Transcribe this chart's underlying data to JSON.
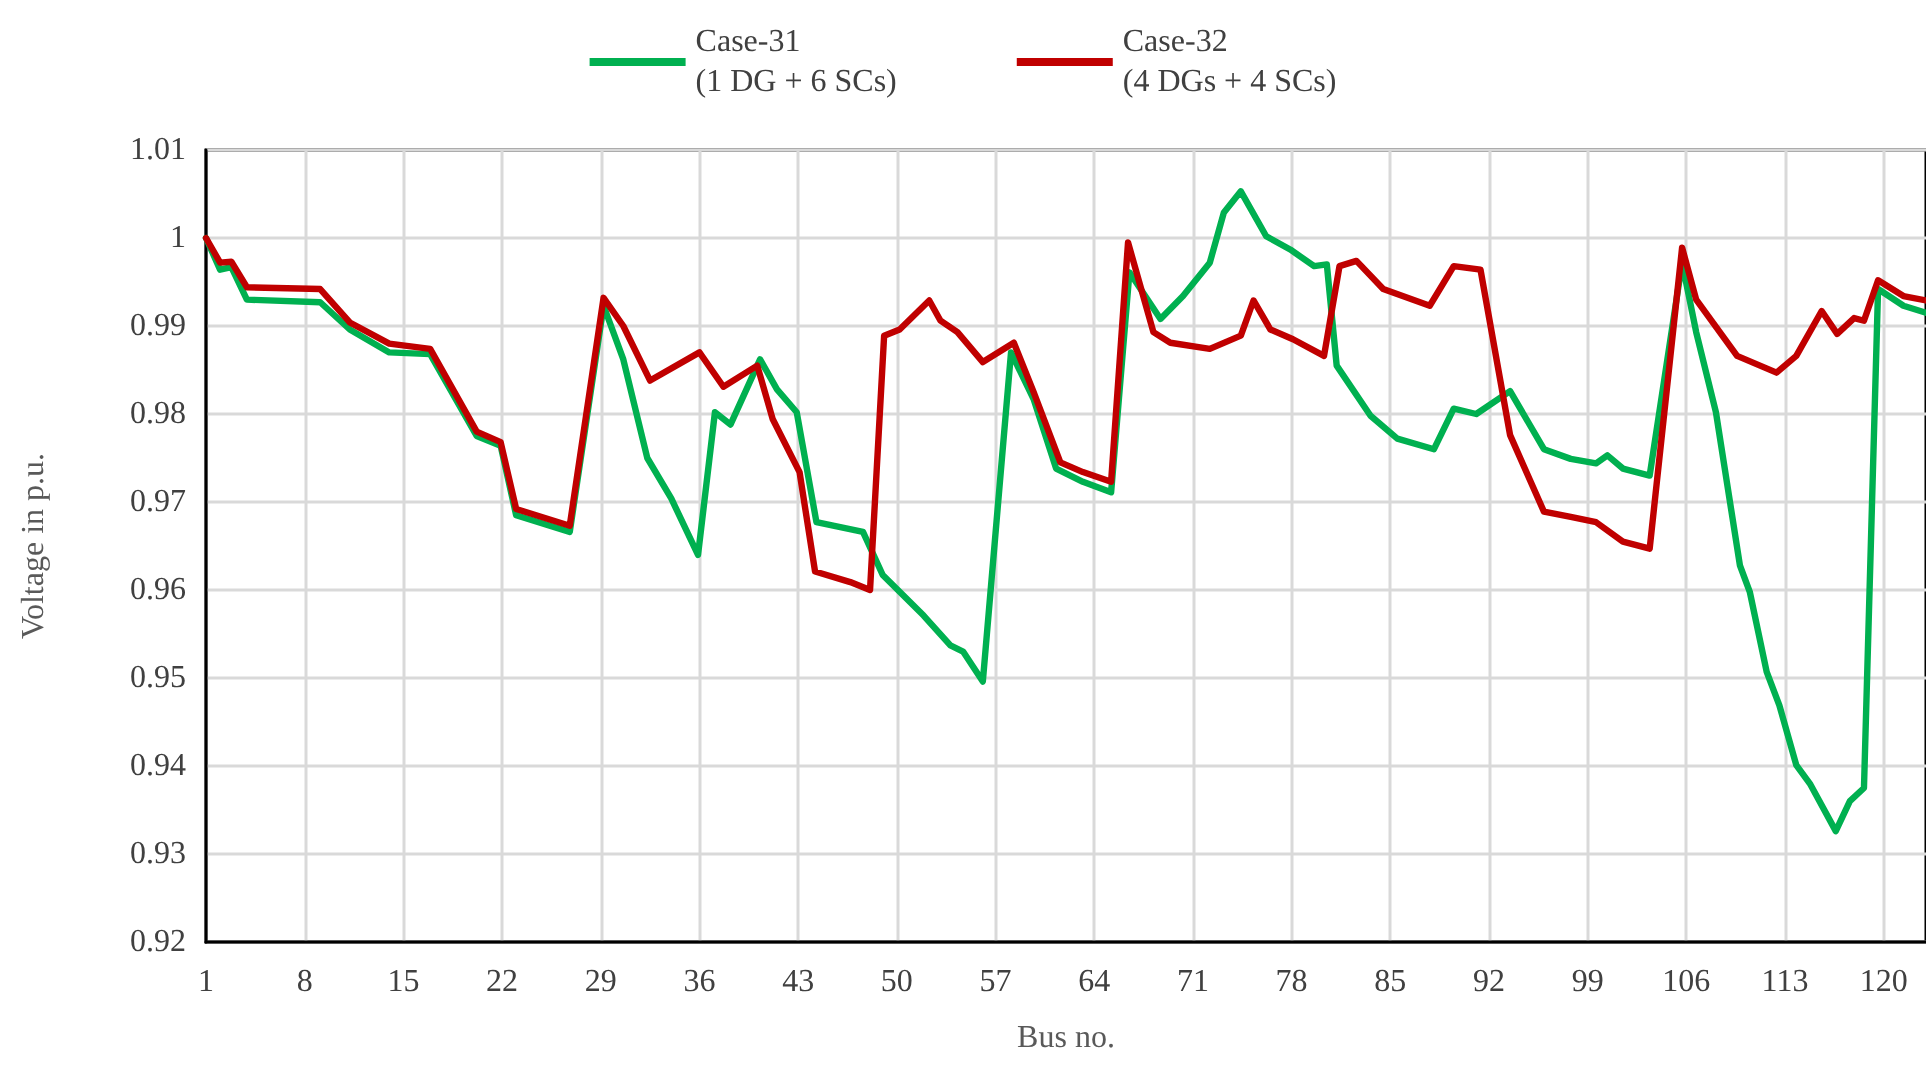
{
  "chart_data": {
    "type": "line",
    "xlabel": "Bus no.",
    "ylabel": "Voltage in p.u.",
    "xlim": [
      1,
      123
    ],
    "xticks": [
      1,
      8,
      15,
      22,
      29,
      36,
      43,
      50,
      57,
      64,
      71,
      78,
      85,
      92,
      99,
      106,
      113,
      120
    ],
    "ylim": [
      0.92,
      1.01
    ],
    "yticks": [
      0.92,
      0.93,
      0.94,
      0.95,
      0.96,
      0.97,
      0.98,
      0.99,
      1,
      1.01
    ],
    "grid": true,
    "legend": "top",
    "marker": "none",
    "line_style": "solid",
    "series": [
      {
        "name": "Case-31\n(1 DG + 6 SCs)",
        "color": "#00b050",
        "x": [
          1,
          2,
          2.8,
          3.9,
          9.1,
          11.2,
          14,
          16.9,
          20.2,
          21.9,
          23,
          26.8,
          29.2,
          30.6,
          32.3,
          34,
          35.9,
          37.1,
          38.2,
          40.3,
          41.5,
          42.9,
          44.3,
          47.6,
          49,
          51.9,
          53.8,
          54.7,
          56.1,
          58.1,
          59.7,
          61.3,
          63.2,
          65.2,
          66.5,
          68.7,
          70.3,
          72.2,
          73.2,
          74.4,
          76.2,
          77.9,
          79.6,
          80.5,
          81.2,
          83.6,
          85.5,
          88.1,
          89.5,
          91.1,
          93.5,
          95.9,
          97.8,
          99.6,
          100.4,
          101.5,
          103.4,
          105.7,
          106.7,
          108.1,
          109.8,
          110.5,
          111.7,
          112.6,
          113.8,
          114.8,
          116.6,
          117.6,
          118.6,
          119.6,
          121.4,
          123
        ],
        "values": [
          1.0,
          0.9964,
          0.9967,
          0.993,
          0.9927,
          0.9896,
          0.987,
          0.9868,
          0.9775,
          0.9764,
          0.9685,
          0.9666,
          0.9923,
          0.9862,
          0.975,
          0.9704,
          0.964,
          0.9802,
          0.9788,
          0.9862,
          0.9828,
          0.9802,
          0.9677,
          0.9666,
          0.9617,
          0.9571,
          0.9537,
          0.953,
          0.9496,
          0.987,
          0.9817,
          0.9738,
          0.9723,
          0.9711,
          0.9961,
          0.9908,
          0.9934,
          0.9972,
          1.0029,
          1.0053,
          1.0002,
          0.9987,
          0.9968,
          0.997,
          0.9855,
          0.9798,
          0.9772,
          0.976,
          0.9806,
          0.98,
          0.9826,
          0.976,
          0.9749,
          0.9744,
          0.9753,
          0.9738,
          0.973,
          0.9972,
          0.9893,
          0.9802,
          0.9628,
          0.9598,
          0.9507,
          0.9469,
          0.9401,
          0.9379,
          0.9326,
          0.936,
          0.9375,
          0.9942,
          0.9923,
          0.9915
        ]
      },
      {
        "name": "Case-32\n(4 DGs + 4 SCs)",
        "color": "#c00000",
        "x": [
          1,
          2,
          2.8,
          3.9,
          9.1,
          11.2,
          14,
          16.9,
          20.2,
          21.9,
          23,
          26.8,
          29.2,
          30.6,
          32.5,
          36,
          37.7,
          40.1,
          41.2,
          43.1,
          44.2,
          46.7,
          48.1,
          49.1,
          50.2,
          52.3,
          53.1,
          54.3,
          56.1,
          58.3,
          59.7,
          61.6,
          63.2,
          65.2,
          66.4,
          68.2,
          69.4,
          72.2,
          74.4,
          75.3,
          76.5,
          78.1,
          80.3,
          81.4,
          82.6,
          84.5,
          87.8,
          89.5,
          91.4,
          93.5,
          95.9,
          97.8,
          99.6,
          101.5,
          103.4,
          105.7,
          106.7,
          109.6,
          112.4,
          113.8,
          115.6,
          116.7,
          117.9,
          118.6,
          119.6,
          121.4,
          123
        ],
        "values": [
          1.0,
          0.9972,
          0.9973,
          0.9944,
          0.9942,
          0.9904,
          0.988,
          0.9874,
          0.978,
          0.9768,
          0.9692,
          0.9673,
          0.9932,
          0.99,
          0.9838,
          0.987,
          0.9831,
          0.9855,
          0.9794,
          0.9734,
          0.9621,
          0.9609,
          0.96,
          0.9889,
          0.9896,
          0.9929,
          0.9906,
          0.9893,
          0.9859,
          0.9881,
          0.9825,
          0.9745,
          0.9734,
          0.9723,
          0.9995,
          0.9893,
          0.9881,
          0.9874,
          0.9889,
          0.9929,
          0.9896,
          0.9885,
          0.9866,
          0.9968,
          0.9974,
          0.9942,
          0.9923,
          0.9968,
          0.9964,
          0.9776,
          0.9689,
          0.9683,
          0.9677,
          0.9655,
          0.9647,
          0.9989,
          0.993,
          0.9866,
          0.9847,
          0.9866,
          0.9917,
          0.9891,
          0.9909,
          0.9906,
          0.9952,
          0.9934,
          0.9929
        ]
      }
    ]
  }
}
